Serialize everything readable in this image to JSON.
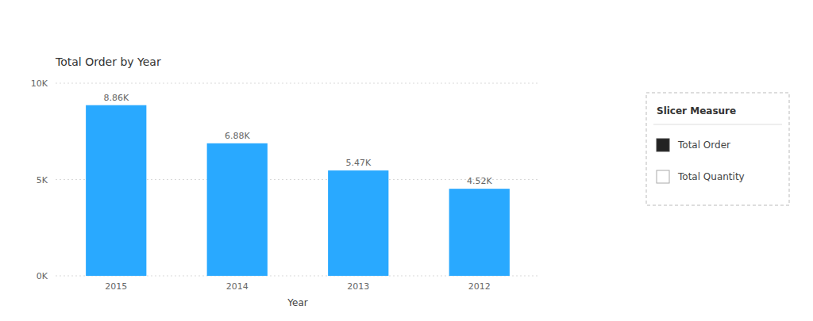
{
  "chart_data": {
    "type": "bar",
    "title": "Total Order by Year",
    "x_label": "Year",
    "categories": [
      "2015",
      "2014",
      "2013",
      "2012"
    ],
    "values": [
      8860,
      6880,
      5470,
      4520
    ],
    "value_labels": [
      "8.86K",
      "6.88K",
      "5.47K",
      "4.52K"
    ],
    "data_labels": true,
    "color": "#29a9ff",
    "ylim": [
      0,
      10000
    ],
    "yticks": [
      {
        "value": 0,
        "label": "0K"
      },
      {
        "value": 5000,
        "label": "5K"
      },
      {
        "value": 10000,
        "label": "10K"
      }
    ],
    "grid": true,
    "slicer": {
      "title": "Slicer Measure",
      "items": [
        "Total Order",
        "Total Quantity"
      ],
      "checked": [
        true,
        false
      ]
    }
  }
}
